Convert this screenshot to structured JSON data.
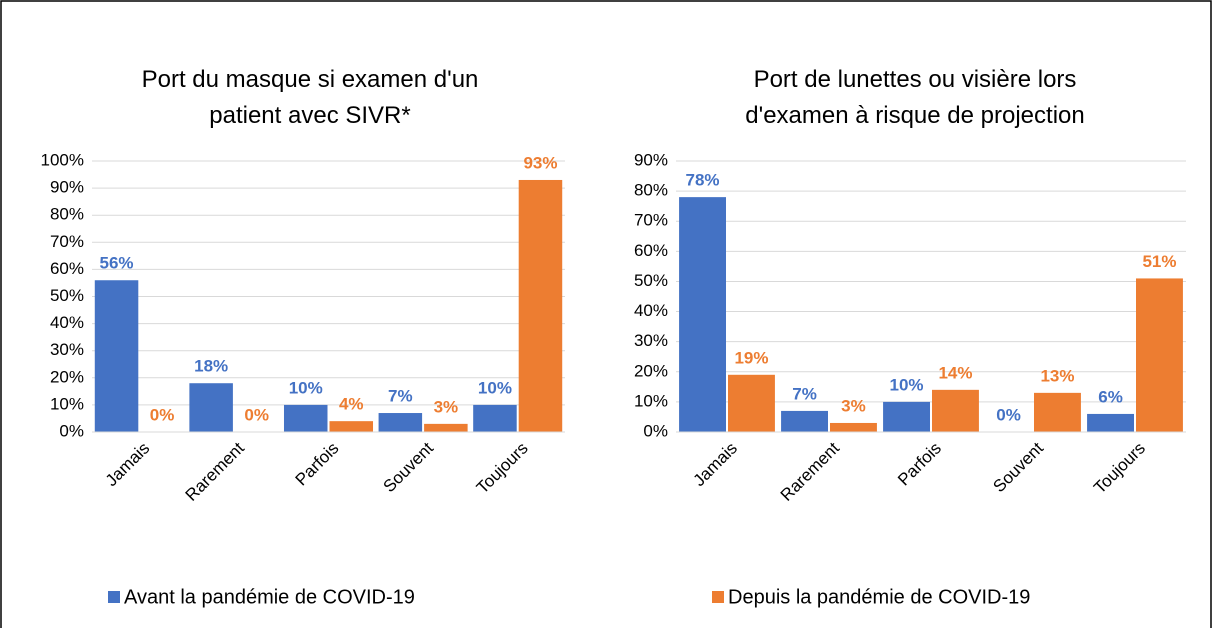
{
  "chart_data": [
    {
      "type": "bar",
      "title": "Port du masque si examen d'un patient avec SIVR*",
      "categories": [
        "Jamais",
        "Rarement",
        "Parfois",
        "Souvent",
        "Toujours"
      ],
      "series": [
        {
          "name": "Avant la pandémie de COVID-19",
          "color": "#4472c4",
          "values": [
            56,
            18,
            10,
            7,
            10
          ],
          "value_labels": [
            "56%",
            "18%",
            "10%",
            "7%",
            "10%"
          ]
        },
        {
          "name": "Depuis la pandémie de COVID-19",
          "color": "#ed7d31",
          "values": [
            0,
            0,
            4,
            3,
            93
          ],
          "value_labels": [
            "0%",
            "0%",
            "4%",
            "3%",
            "93%"
          ]
        }
      ],
      "ylim": [
        0,
        100
      ],
      "yticks": [
        {
          "value": 0,
          "label": "0%"
        },
        {
          "value": 10,
          "label": "10%"
        },
        {
          "value": 20,
          "label": "20%"
        },
        {
          "value": 30,
          "label": "30%"
        },
        {
          "value": 40,
          "label": "40%"
        },
        {
          "value": 50,
          "label": "50%"
        },
        {
          "value": 60,
          "label": "60%"
        },
        {
          "value": 70,
          "label": "70%"
        },
        {
          "value": 80,
          "label": "80%"
        },
        {
          "value": 90,
          "label": "90%"
        },
        {
          "value": 100,
          "label": "100%"
        }
      ],
      "grid": true
    },
    {
      "type": "bar",
      "title": "Port de lunettes ou visière lors d'examen à risque de projection",
      "categories": [
        "Jamais",
        "Rarement",
        "Parfois",
        "Souvent",
        "Toujours"
      ],
      "series": [
        {
          "name": "Avant la pandémie de COVID-19",
          "color": "#4472c4",
          "values": [
            78,
            7,
            10,
            0,
            6
          ],
          "value_labels": [
            "78%",
            "7%",
            "10%",
            "0%",
            "6%"
          ]
        },
        {
          "name": "Depuis la pandémie de COVID-19",
          "color": "#ed7d31",
          "values": [
            19,
            3,
            14,
            13,
            51
          ],
          "value_labels": [
            "19%",
            "3%",
            "14%",
            "13%",
            "51%"
          ]
        }
      ],
      "ylim": [
        0,
        90
      ],
      "yticks": [
        {
          "value": 0,
          "label": "0%"
        },
        {
          "value": 10,
          "label": "10%"
        },
        {
          "value": 20,
          "label": "20%"
        },
        {
          "value": 30,
          "label": "30%"
        },
        {
          "value": 40,
          "label": "40%"
        },
        {
          "value": 50,
          "label": "50%"
        },
        {
          "value": 60,
          "label": "60%"
        },
        {
          "value": 70,
          "label": "70%"
        },
        {
          "value": 80,
          "label": "80%"
        },
        {
          "value": 90,
          "label": "90%"
        }
      ],
      "grid": true
    }
  ]
}
